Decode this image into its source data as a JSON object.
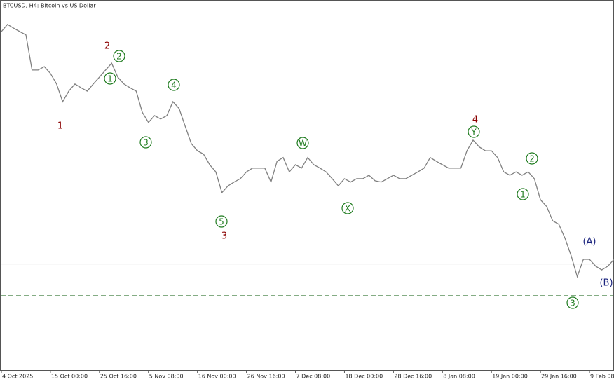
{
  "chart_data": {
    "type": "line",
    "title": "BTCUSD, H4:  Bitcoin vs US Dollar",
    "xticks": [
      {
        "value": 0,
        "label": "4 Oct 2025"
      },
      {
        "value": 8,
        "label": "15 Oct 00:00"
      },
      {
        "value": 16,
        "label": "25 Oct 16:00"
      },
      {
        "value": 24,
        "label": "5 Nov 08:00"
      },
      {
        "value": 32,
        "label": "16 Nov 00:00"
      },
      {
        "value": 40,
        "label": "26 Nov 16:00"
      },
      {
        "value": 48,
        "label": "7 Dec 08:00"
      },
      {
        "value": 56,
        "label": "18 Dec 00:00"
      },
      {
        "value": 64,
        "label": "28 Dec 16:00"
      },
      {
        "value": 72,
        "label": "8 Jan 08:00"
      },
      {
        "value": 80,
        "label": "19 Jan 00:00"
      },
      {
        "value": 88,
        "label": "29 Jan 16:00"
      },
      {
        "value": 96,
        "label": "9 Feb 08:00"
      }
    ],
    "ylim": [
      42400,
      129800
    ],
    "series": [
      {
        "name": "BTCUSD",
        "color": "#808080",
        "values": [
          122500,
          124200,
          123300,
          122500,
          121700,
          113400,
          113400,
          114200,
          112600,
          110100,
          105900,
          108400,
          110100,
          109200,
          108400,
          110100,
          111700,
          113400,
          115000,
          111700,
          110100,
          109200,
          108400,
          103400,
          101000,
          102600,
          101800,
          102600,
          105900,
          104300,
          100100,
          96000,
          94300,
          93500,
          91000,
          89300,
          84400,
          86000,
          86900,
          87700,
          89300,
          90200,
          90200,
          90200,
          86900,
          91800,
          92700,
          89300,
          91000,
          90200,
          92700,
          91000,
          90200,
          89300,
          87700,
          86000,
          87700,
          86900,
          87700,
          87700,
          88500,
          87200,
          86900,
          87700,
          88500,
          87700,
          87700,
          88500,
          89300,
          90200,
          92700,
          91800,
          91000,
          90200,
          90200,
          90200,
          94300,
          96800,
          95200,
          94300,
          94300,
          92700,
          89300,
          88500,
          89300,
          88500,
          89300,
          87700,
          82700,
          81100,
          77700,
          76900,
          73600,
          69500,
          64500,
          68600,
          68600,
          67000,
          66100,
          67000,
          68600
        ]
      }
    ],
    "levels": [
      {
        "value": 67500,
        "color": "#c8c8c8",
        "dashed": false
      },
      {
        "value": 60000,
        "color": "#3a7a3a",
        "dashed": true
      }
    ],
    "annotations": [
      {
        "text": "1",
        "color": "#8b0000",
        "circled": false
      },
      {
        "text": "2",
        "color": "#8b0000",
        "circled": false
      },
      {
        "text": "2",
        "color": "#1e7b1e",
        "circled": true
      },
      {
        "text": "1",
        "color": "#1e7b1e",
        "circled": true
      },
      {
        "text": "4",
        "color": "#1e7b1e",
        "circled": true
      },
      {
        "text": "3",
        "color": "#1e7b1e",
        "circled": true
      },
      {
        "text": "W",
        "color": "#1e7b1e",
        "circled": true
      },
      {
        "text": "5",
        "color": "#1e7b1e",
        "circled": true
      },
      {
        "text": "3",
        "color": "#8b0000",
        "circled": false
      },
      {
        "text": "X",
        "color": "#1e7b1e",
        "circled": true
      },
      {
        "text": "4",
        "color": "#8b0000",
        "circled": false
      },
      {
        "text": "Y",
        "color": "#1e7b1e",
        "circled": true
      },
      {
        "text": "2",
        "color": "#1e7b1e",
        "circled": true
      },
      {
        "text": "1",
        "color": "#1e7b1e",
        "circled": true
      },
      {
        "text": "(A)",
        "color": "#1a237e",
        "circled": false
      },
      {
        "text": "(B)",
        "color": "#1a237e",
        "circled": false
      },
      {
        "text": "3",
        "color": "#1e7b1e",
        "circled": true
      }
    ]
  }
}
